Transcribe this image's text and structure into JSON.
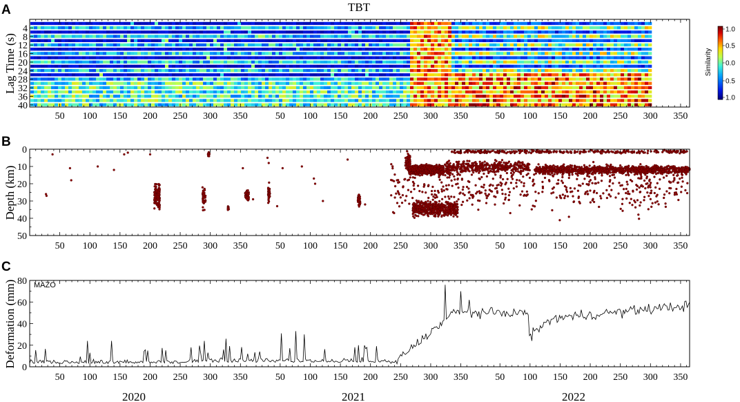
{
  "years": [
    "2020",
    "2021",
    "2022"
  ],
  "chart_data": [
    {
      "panel": "A",
      "type": "heatmap",
      "title": "TBT",
      "ylabel": "Lag Time (s)",
      "y_ticks": [
        "4",
        "8",
        "12",
        "16",
        "20",
        "24",
        "28",
        "32",
        "36",
        "40"
      ],
      "x_ticks": [
        "50",
        "100",
        "150",
        "200",
        "250",
        "300",
        "350",
        "50",
        "100",
        "150",
        "200",
        "250",
        "300",
        "350",
        "50",
        "100",
        "150",
        "200",
        "250",
        "300",
        "350"
      ],
      "colorbar": {
        "label": "Similarity",
        "ticks": [
          "1.0",
          "0.5",
          "0.0",
          "0.5",
          "1.0"
        ],
        "colors": [
          "#7a0000",
          "#d40000",
          "#ff5a00",
          "#ffd000",
          "#c8ff50",
          "#40ffd0",
          "#00a0ff",
          "#0020e0",
          "#000080"
        ]
      },
      "lag_rows": [
        2,
        4,
        6,
        8,
        10,
        12,
        14,
        16,
        18,
        20,
        22,
        24,
        26,
        28,
        30,
        32,
        34,
        36,
        38,
        40
      ],
      "day_range": [
        0,
        1096
      ],
      "data_end_day": 1030,
      "high_similarity_onset_day": 626,
      "y_range": [
        0,
        41
      ]
    },
    {
      "panel": "B",
      "type": "scatter",
      "ylabel": "Depth (km)",
      "y_ticks": [
        "0",
        "10",
        "20",
        "30",
        "40",
        "50"
      ],
      "ylim": [
        50,
        0
      ],
      "x_ticks": [
        "50",
        "100",
        "150",
        "200",
        "250",
        "300",
        "350",
        "50",
        "100",
        "150",
        "200",
        "250",
        "300",
        "350",
        "50",
        "100",
        "150",
        "200",
        "250",
        "300",
        "350"
      ],
      "marker_color": "#8b0000",
      "clusters": [
        {
          "day_range": [
            207,
            216
          ],
          "depth_range": [
            17,
            38
          ],
          "count": 140
        },
        {
          "day_range": [
            287,
            292
          ],
          "depth_range": [
            20,
            38
          ],
          "count": 40
        },
        {
          "day_range": [
            296,
            299
          ],
          "depth_range": [
            1,
            5
          ],
          "count": 12
        },
        {
          "day_range": [
            329,
            331
          ],
          "depth_range": [
            32,
            36
          ],
          "count": 10
        },
        {
          "day_range": [
            358,
            364
          ],
          "depth_range": [
            22,
            32
          ],
          "count": 60
        },
        {
          "day_range": [
            396,
            399
          ],
          "depth_range": [
            17,
            33
          ],
          "count": 40
        },
        {
          "day_range": [
            545,
            549
          ],
          "depth_range": [
            24,
            35
          ],
          "count": 40
        },
        {
          "day_range": [
            624,
            632
          ],
          "depth_range": [
            0,
            14
          ],
          "count": 80
        },
        {
          "day_range": [
            630,
            688
          ],
          "depth_range": [
            8,
            16
          ],
          "count": 1000
        },
        {
          "day_range": [
            636,
            711
          ],
          "depth_range": [
            28,
            41
          ],
          "count": 500
        },
        {
          "day_range": [
            689,
            830
          ],
          "depth_range": [
            5,
            16
          ],
          "count": 400
        },
        {
          "day_range": [
            700,
            1096
          ],
          "depth_range": [
            0,
            3
          ],
          "count": 300
        },
        {
          "day_range": [
            840,
            1096
          ],
          "depth_range": [
            8,
            16
          ],
          "count": 900
        },
        {
          "day_range": [
            600,
            1096
          ],
          "depth_range": [
            0,
            45
          ],
          "count": 500
        }
      ],
      "isolated_points": [
        {
          "day": 27,
          "depth": 26
        },
        {
          "day": 28,
          "depth": 27
        },
        {
          "day": 38,
          "depth": 3
        },
        {
          "day": 67,
          "depth": 11
        },
        {
          "day": 69,
          "depth": 18
        },
        {
          "day": 113,
          "depth": 10
        },
        {
          "day": 140,
          "depth": 12
        },
        {
          "day": 157,
          "depth": 3
        },
        {
          "day": 163,
          "depth": 2
        },
        {
          "day": 200,
          "depth": 3
        },
        {
          "day": 354,
          "depth": 11
        },
        {
          "day": 371,
          "depth": 29
        },
        {
          "day": 395,
          "depth": 5
        },
        {
          "day": 397,
          "depth": 8
        },
        {
          "day": 411,
          "depth": 33
        },
        {
          "day": 420,
          "depth": 11
        },
        {
          "day": 452,
          "depth": 10
        },
        {
          "day": 472,
          "depth": 17
        },
        {
          "day": 474,
          "depth": 20
        },
        {
          "day": 487,
          "depth": 30
        },
        {
          "day": 528,
          "depth": 6
        },
        {
          "day": 557,
          "depth": 32
        },
        {
          "day": 610,
          "depth": 18
        },
        {
          "day": 620,
          "depth": 22
        }
      ]
    },
    {
      "panel": "C",
      "type": "line",
      "station_label": "MAZO",
      "ylabel": "Deformation (mm)",
      "y_ticks": [
        "0",
        "20",
        "40",
        "60",
        "80"
      ],
      "ylim": [
        0,
        80
      ],
      "x_ticks": [
        "50",
        "100",
        "150",
        "200",
        "250",
        "300",
        "350",
        "50",
        "100",
        "150",
        "200",
        "250",
        "300",
        "350",
        "50",
        "100",
        "150",
        "200",
        "250",
        "300",
        "350"
      ],
      "line_color": "#000000",
      "day_range": [
        0,
        1096
      ],
      "baseline_mm": 4,
      "eruption_onset_day": 626,
      "plateau_mm": 50,
      "end_mm": 57,
      "spikes": [
        {
          "day": 95,
          "mm": 24
        },
        {
          "day": 135,
          "mm": 24
        },
        {
          "day": 290,
          "mm": 24
        },
        {
          "day": 325,
          "mm": 26
        },
        {
          "day": 418,
          "mm": 31
        },
        {
          "day": 441,
          "mm": 33
        },
        {
          "day": 456,
          "mm": 30
        },
        {
          "day": 545,
          "mm": 20
        },
        {
          "day": 690,
          "mm": 76
        },
        {
          "day": 716,
          "mm": 70
        },
        {
          "day": 730,
          "mm": 62
        }
      ],
      "dip": {
        "day": 833,
        "mm": 24
      }
    }
  ],
  "panels": {
    "A": {
      "letter": "A"
    },
    "B": {
      "letter": "B"
    },
    "C": {
      "letter": "C"
    }
  }
}
